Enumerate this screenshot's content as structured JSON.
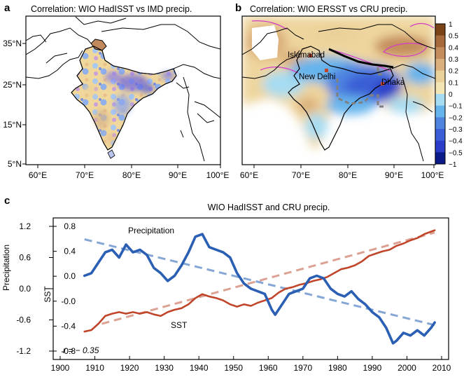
{
  "panel_a": {
    "label": "a",
    "title": "Correlation: WIO HadISST vs IMD precip.",
    "x_ticks": [
      "60°E",
      "70°E",
      "80°E",
      "90°E",
      "100°E"
    ],
    "y_ticks": [
      "35°N",
      "25°N",
      "15°N",
      "5°N"
    ]
  },
  "panel_b": {
    "label": "b",
    "title": "Correlation: WIO ERSST vs CRU precip.",
    "x_ticks": [
      "60°E",
      "70°E",
      "80°E",
      "90°E",
      "100°E"
    ],
    "cities": [
      {
        "name": "Islamabad"
      },
      {
        "name": "New Delhi"
      },
      {
        "name": "Dhaka"
      }
    ]
  },
  "colorbar": {
    "ticks": [
      "1",
      "0.5",
      "0.4",
      "0.3",
      "0.2",
      "0.1",
      "0",
      "−0.1",
      "−0.2",
      "−0.3",
      "−0.4",
      "−0.5",
      "−1"
    ],
    "colors": [
      "#7a4318",
      "#a86a3a",
      "#c58d5b",
      "#dcb07c",
      "#ead19a",
      "#f4e6b4",
      "#a6dcf2",
      "#66b4ec",
      "#4f84e0",
      "#3a5ed6",
      "#2a3cc8",
      "#0a1a88"
    ]
  },
  "panel_c": {
    "label": "c",
    "title": "WIO HadISST and CRU precip.",
    "annotation": "r = − 0.35"
  },
  "chart_data": {
    "type": "line",
    "title": "WIO HadISST and CRU precip.",
    "xlabel": "",
    "ylabel_left": "Precipitation",
    "ylabel_inner": "SST",
    "xlim": [
      1900,
      2010
    ],
    "x_ticks": [
      1900,
      1910,
      1920,
      1930,
      1940,
      1950,
      1960,
      1970,
      1980,
      1990,
      2000,
      2010
    ],
    "precip_ticks": [
      "1.2",
      "0.6",
      "0.0",
      "-0.6",
      "-1.2"
    ],
    "sst_ticks": [
      "0.8",
      "0.4",
      "0.0",
      "-0.0",
      "-0.4",
      "-0.8"
    ],
    "precip_axis_range": [
      -1.2,
      1.2
    ],
    "series": [
      {
        "name": "Precipitation",
        "axis": "precipitation",
        "color": "#2b5fb4",
        "x": [
          1907,
          1909,
          1911,
          1913,
          1915,
          1917,
          1919,
          1921,
          1923,
          1925,
          1927,
          1929,
          1931,
          1933,
          1935,
          1937,
          1939,
          1941,
          1943,
          1945,
          1947,
          1949,
          1951,
          1953,
          1955,
          1957,
          1959,
          1961,
          1962,
          1964,
          1966,
          1968,
          1970,
          1972,
          1974,
          1976,
          1978,
          1980,
          1982,
          1984,
          1986,
          1988,
          1990,
          1992,
          1994,
          1996,
          1997,
          1999,
          2001,
          2003,
          2005,
          2007,
          2008
        ],
        "values": [
          0.25,
          0.3,
          0.5,
          0.7,
          0.75,
          0.6,
          0.85,
          0.7,
          0.75,
          0.65,
          0.4,
          0.3,
          0.15,
          0.25,
          0.45,
          0.7,
          1.0,
          1.05,
          0.8,
          0.75,
          0.7,
          0.6,
          0.3,
          0.1,
          0.0,
          -0.05,
          -0.1,
          -0.4,
          -0.5,
          -0.3,
          -0.1,
          -0.05,
          0.0,
          0.2,
          0.25,
          0.2,
          0.0,
          -0.1,
          -0.15,
          -0.05,
          -0.2,
          -0.3,
          -0.45,
          -0.55,
          -0.75,
          -1.05,
          -1.0,
          -0.85,
          -0.9,
          -0.8,
          -0.9,
          -0.75,
          -0.65
        ]
      },
      {
        "name": "SST",
        "axis": "sst",
        "color": "#c0452a",
        "x": [
          1907,
          1909,
          1911,
          1913,
          1915,
          1917,
          1919,
          1921,
          1923,
          1925,
          1927,
          1929,
          1931,
          1933,
          1935,
          1937,
          1939,
          1941,
          1943,
          1945,
          1947,
          1949,
          1951,
          1953,
          1955,
          1957,
          1959,
          1961,
          1963,
          1965,
          1967,
          1969,
          1971,
          1973,
          1975,
          1977,
          1979,
          1981,
          1983,
          1985,
          1987,
          1989,
          1991,
          1993,
          1995,
          1997,
          1999,
          2001,
          2003,
          2005,
          2008
        ],
        "values": [
          -0.55,
          -0.53,
          -0.45,
          -0.35,
          -0.32,
          -0.3,
          -0.32,
          -0.3,
          -0.32,
          -0.3,
          -0.33,
          -0.35,
          -0.3,
          -0.27,
          -0.25,
          -0.2,
          -0.12,
          -0.07,
          -0.1,
          -0.12,
          -0.15,
          -0.2,
          -0.23,
          -0.2,
          -0.22,
          -0.18,
          -0.15,
          -0.12,
          -0.05,
          0.0,
          0.02,
          0.05,
          0.07,
          0.1,
          0.12,
          0.15,
          0.2,
          0.25,
          0.27,
          0.3,
          0.35,
          0.42,
          0.45,
          0.48,
          0.5,
          0.55,
          0.58,
          0.62,
          0.65,
          0.7,
          0.75
        ]
      },
      {
        "name": "",
        "axis": "precipitation",
        "color": "#86a7d6",
        "dashed": true,
        "x": [
          1907,
          2008
        ],
        "values": [
          0.95,
          -0.7
        ]
      },
      {
        "name": "",
        "axis": "sst",
        "color": "#dba294",
        "dashed": true,
        "x": [
          1912,
          2008
        ],
        "values": [
          -0.45,
          0.72
        ]
      }
    ],
    "legend": "inline labels"
  }
}
